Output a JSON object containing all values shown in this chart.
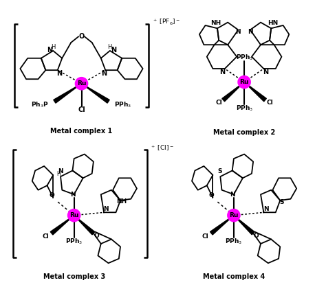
{
  "background_color": "#ffffff",
  "fig_width": 4.74,
  "fig_height": 4.18,
  "dpi": 100,
  "ru_color": "#ff00ff",
  "bond_color": "#000000",
  "labels": {
    "complex1": "Metal complex 1",
    "complex2": "Metal complex 2",
    "complex3": "Metal complex 3",
    "complex4": "Metal complex 4"
  },
  "counter_ions": {
    "complex1": "$^+$ [PF$_6$]$^-$",
    "complex3": "$^+$ [Cl]$^-$"
  }
}
